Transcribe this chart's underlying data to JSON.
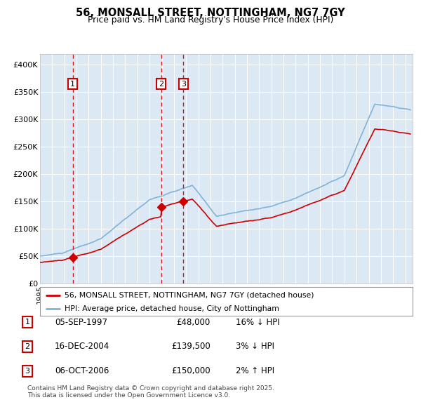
{
  "title_line1": "56, MONSALL STREET, NOTTINGHAM, NG7 7GY",
  "title_line2": "Price paid vs. HM Land Registry's House Price Index (HPI)",
  "fig_bg_color": "#ffffff",
  "plot_bg_color": "#dce9f5",
  "grid_color": "#ffffff",
  "hpi_color": "#7fb3d9",
  "price_color": "#cc0000",
  "vline_color": "#cc0000",
  "ylim": [
    0,
    420000
  ],
  "yticks": [
    0,
    50000,
    100000,
    150000,
    200000,
    250000,
    300000,
    350000,
    400000
  ],
  "xlim_start": 1995.0,
  "xlim_end": 2025.6,
  "legend_line1": "56, MONSALL STREET, NOTTINGHAM, NG7 7GY (detached house)",
  "legend_line2": "HPI: Average price, detached house, City of Nottingham",
  "transactions": [
    {
      "num": 1,
      "date": "05-SEP-1997",
      "price": 48000,
      "hpi_diff": "16% ↓ HPI",
      "x_year": 1997.68
    },
    {
      "num": 2,
      "date": "16-DEC-2004",
      "price": 139500,
      "hpi_diff": "3% ↓ HPI",
      "x_year": 2004.96
    },
    {
      "num": 3,
      "date": "06-OCT-2006",
      "price": 150000,
      "hpi_diff": "2% ↑ HPI",
      "x_year": 2006.77
    }
  ],
  "footnote_line1": "Contains HM Land Registry data © Crown copyright and database right 2025.",
  "footnote_line2": "This data is licensed under the Open Government Licence v3.0."
}
